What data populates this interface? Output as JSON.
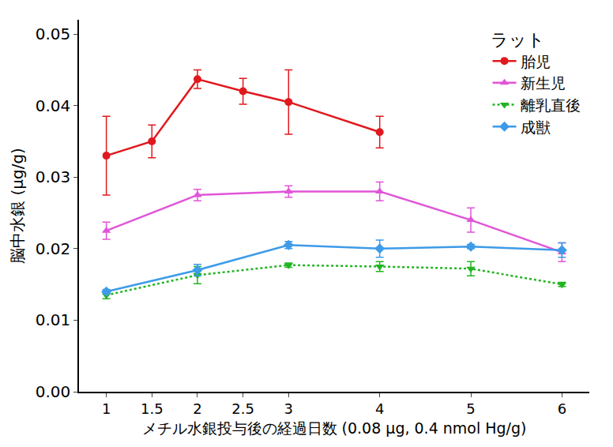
{
  "chart_data": {
    "type": "line",
    "x_label": "メチル水銀投与後の経過日数 (0.08 μg, 0.4 nmol Hg/g)",
    "y_label": "脳中水銀 (μg/g)",
    "legend_title": "ラット",
    "legend": "top-right",
    "grid": false,
    "xlim": [
      0.7,
      6.3
    ],
    "xticks": [
      1,
      1.5,
      2,
      2.5,
      3,
      4,
      5,
      6
    ],
    "ylim": [
      0,
      0.052
    ],
    "yticks": [
      {
        "value": 0,
        "label": "0.00"
      },
      0.01,
      0.02,
      0.03,
      0.04,
      0.05
    ],
    "series": [
      {
        "name": "胎児",
        "color": "#e0191e",
        "marker": "circle",
        "line_style": "solid",
        "x": [
          1,
          1.5,
          2,
          2.5,
          3,
          4
        ],
        "values": [
          0.033,
          0.035,
          0.0437,
          0.042,
          0.0405,
          0.0363
        ],
        "errors": [
          0.0055,
          0.0023,
          0.0013,
          0.0018,
          0.0045,
          0.0022
        ]
      },
      {
        "name": "新生児",
        "color": "#e055d8",
        "marker": "triangle-up",
        "line_style": "solid",
        "x": [
          1,
          2,
          3,
          4,
          5,
          6
        ],
        "values": [
          0.0225,
          0.0275,
          0.028,
          0.028,
          0.024,
          0.0195
        ],
        "errors": [
          0.0012,
          0.0008,
          0.0008,
          0.0013,
          0.0017,
          0.0013
        ]
      },
      {
        "name": "離乳直後",
        "color": "#22b422",
        "marker": "triangle-down",
        "line_style": "dot",
        "x": [
          1,
          2,
          3,
          4,
          5,
          6
        ],
        "values": [
          0.0135,
          0.0163,
          0.0177,
          0.0175,
          0.0172,
          0.015
        ],
        "errors": [
          0.0005,
          0.0012,
          0.0003,
          0.0007,
          0.001,
          0.0003
        ]
      },
      {
        "name": "成獣",
        "color": "#3d9be8",
        "marker": "diamond",
        "line_style": "solid",
        "x": [
          1,
          2,
          3,
          4,
          5,
          6
        ],
        "values": [
          0.014,
          0.017,
          0.0205,
          0.02,
          0.0203,
          0.0198
        ],
        "errors": [
          0.0003,
          0.0008,
          0.0005,
          0.0012,
          0.0003,
          0.001
        ]
      }
    ]
  }
}
